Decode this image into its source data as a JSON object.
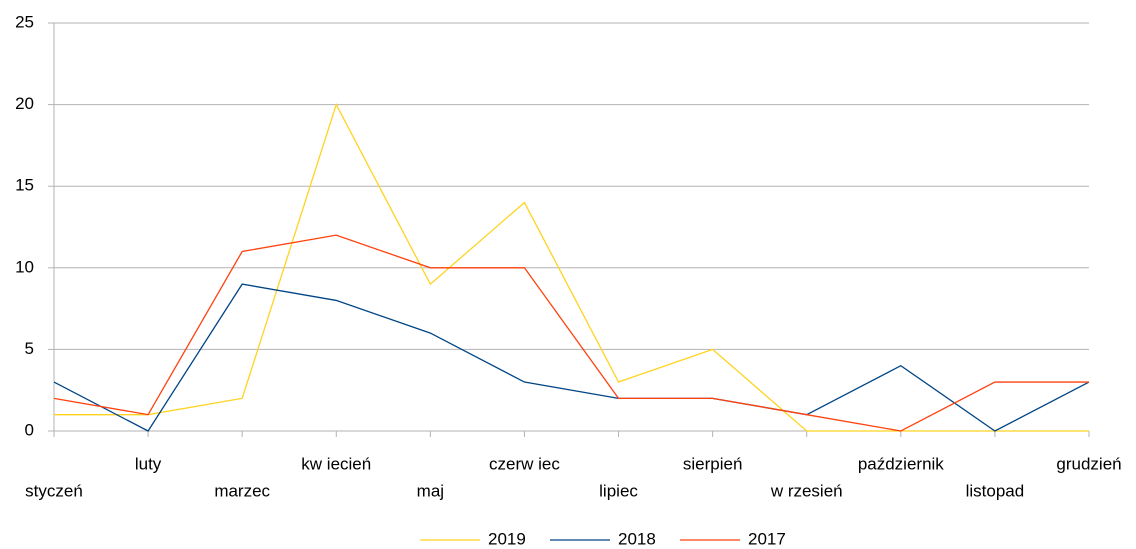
{
  "chart_data": {
    "type": "line",
    "categories": [
      "styczeń",
      "luty",
      "marzec",
      "kw iecień",
      "maj",
      "czerw iec",
      "lipiec",
      "sierpień",
      "w rzesień",
      "październik",
      "listopad",
      "grudzień"
    ],
    "series": [
      {
        "name": "2019",
        "color": "#ffd320",
        "values": [
          1,
          1,
          2,
          20,
          9,
          14,
          3,
          5,
          0,
          0,
          0,
          0
        ]
      },
      {
        "name": "2018",
        "color": "#004586",
        "values": [
          3,
          0,
          9,
          8,
          6,
          3,
          2,
          2,
          1,
          4,
          0,
          3
        ]
      },
      {
        "name": "2017",
        "color": "#ff420e",
        "values": [
          2,
          1,
          11,
          12,
          10,
          10,
          2,
          2,
          1,
          0,
          3,
          3
        ]
      }
    ],
    "ylim": [
      0,
      25
    ],
    "yticks": [
      0,
      5,
      10,
      15,
      20,
      25
    ],
    "grid": true,
    "legend": "bottom"
  }
}
